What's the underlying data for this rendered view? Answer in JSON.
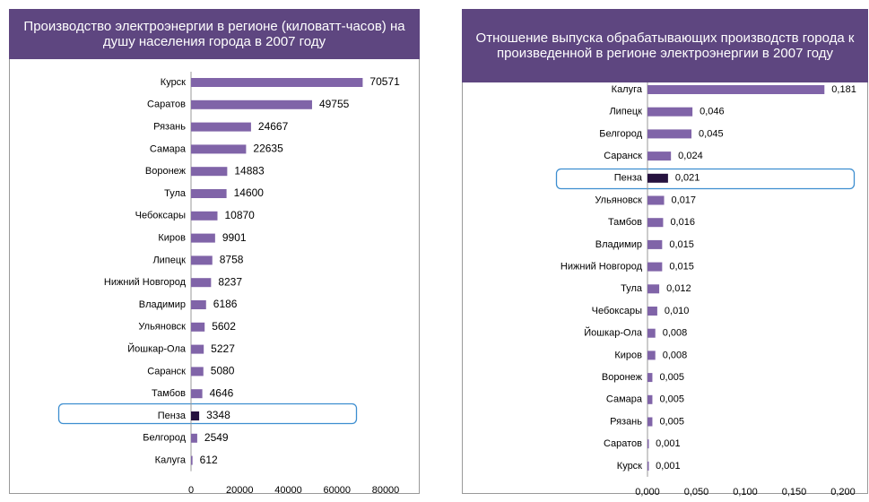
{
  "chart_data": [
    {
      "type": "barh",
      "title": "Производство электроэнергии в регионе (киловатт-часов) на душу населения города в 2007 году",
      "categories": [
        "Курск",
        "Саратов",
        "Рязань",
        "Самара",
        "Воронеж",
        "Тула",
        "Чебоксары",
        "Киров",
        "Липецк",
        "Нижний Новгород",
        "Владимир",
        "Ульяновск",
        "Йошкар-Ола",
        "Саранск",
        "Тамбов",
        "Пенза",
        "Белгород",
        "Калуга"
      ],
      "values": [
        70571,
        49755,
        24667,
        22635,
        14883,
        14600,
        10870,
        9901,
        8758,
        8237,
        6186,
        5602,
        5227,
        5080,
        4646,
        3348,
        2549,
        612
      ],
      "colors": [
        "#8064a8",
        "#8064a8",
        "#8064a8",
        "#8064a8",
        "#8064a8",
        "#8064a8",
        "#8064a8",
        "#8064a8",
        "#8064a8",
        "#8064a8",
        "#8064a8",
        "#8064a8",
        "#8064a8",
        "#8064a8",
        "#8064a8",
        "#26123f",
        "#8064a8",
        "#8064a8"
      ],
      "xlim": [
        0,
        80000
      ],
      "xticks": [
        0,
        20000,
        40000,
        60000,
        80000
      ]
    },
    {
      "type": "barh",
      "title": "Отношение выпуска обрабатывающих производств города к произведенной в регионе электроэнергии в 2007 году",
      "categories": [
        "Калуга",
        "Липецк",
        "Белгород",
        "Саранск",
        "Пенза",
        "Ульяновск",
        "Тамбов",
        "Владимир",
        "Нижний Новгород",
        "Тула",
        "Чебоксары",
        "Йошкар-Ола",
        "Киров",
        "Воронеж",
        "Самара",
        "Рязань",
        "Саратов",
        "Курск"
      ],
      "values": [
        0.181,
        0.046,
        0.045,
        0.024,
        0.021,
        0.017,
        0.016,
        0.015,
        0.015,
        0.012,
        0.01,
        0.008,
        0.008,
        0.005,
        0.005,
        0.005,
        0.001,
        0.001
      ],
      "value_labels": [
        "0,181",
        "0,046",
        "0,045",
        "0,024",
        "0,021",
        "0,017",
        "0,016",
        "0,015",
        "0,015",
        "0,012",
        "0,010",
        "0,008",
        "0,008",
        "0,005",
        "0,005",
        "0,005",
        "0,001",
        "0,001"
      ],
      "colors": [
        "#8064a8",
        "#8064a8",
        "#8064a8",
        "#8064a8",
        "#26123f",
        "#8064a8",
        "#8064a8",
        "#8064a8",
        "#8064a8",
        "#8064a8",
        "#8064a8",
        "#8064a8",
        "#8064a8",
        "#8064a8",
        "#8064a8",
        "#8064a8",
        "#8064a8",
        "#8064a8"
      ],
      "xlim": [
        0,
        0.2
      ],
      "xticks": [
        {
          "value": 0,
          "label": "0,000"
        },
        {
          "value": 0.05,
          "label": "0,050"
        },
        {
          "value": 0.1,
          "label": "0,100"
        },
        {
          "value": 0.15,
          "label": "0,150"
        },
        {
          "value": 0.2,
          "label": "0,200"
        }
      ]
    }
  ]
}
